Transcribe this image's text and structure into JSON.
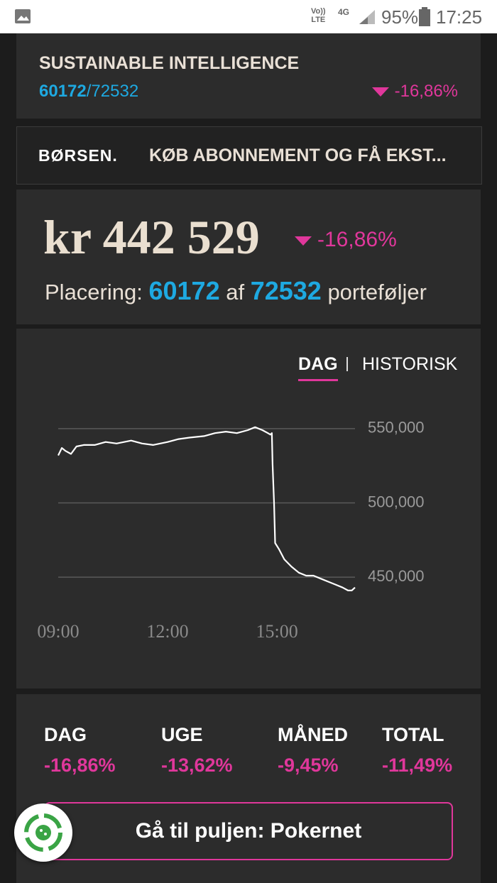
{
  "status_bar": {
    "volte_top": "Vo))",
    "volte_bottom": "LTE",
    "network": "4G",
    "battery": "95%",
    "time": "17:25"
  },
  "portfolio": {
    "name": "SUSTAINABLE INTELLIGENCE",
    "rank": "60172",
    "separator": "/",
    "total": "72532",
    "change": "-16,86%",
    "amount": "kr 442 529",
    "placement_label": "Placering:",
    "of": "af",
    "suffix": "porteføljer"
  },
  "ad": {
    "brand": "BØRSEN.",
    "text": "KØB ABONNEMENT OG FÅ EKST..."
  },
  "tabs": {
    "active": "DAG",
    "other": "HISTORISK"
  },
  "chart_data": {
    "type": "line",
    "color": "#ffffff",
    "grid": true,
    "x": [
      9.0,
      9.1,
      9.2,
      9.35,
      9.5,
      9.7,
      10.0,
      10.3,
      10.6,
      11.0,
      11.3,
      11.6,
      12.0,
      12.3,
      12.6,
      13.0,
      13.3,
      13.6,
      13.9,
      14.2,
      14.4,
      14.6,
      14.75,
      14.82,
      14.86,
      14.88,
      14.92,
      14.95,
      15.05,
      15.2,
      15.4,
      15.6,
      15.8,
      16.0,
      16.2,
      16.4,
      16.6,
      16.8,
      16.95,
      17.05,
      17.14
    ],
    "values": [
      532000,
      537000,
      535000,
      533000,
      538000,
      539000,
      539000,
      541000,
      540000,
      542000,
      540000,
      539000,
      541000,
      543000,
      544000,
      545000,
      547000,
      548000,
      547000,
      549000,
      551000,
      549000,
      547000,
      546000,
      547000,
      526000,
      500000,
      473000,
      469000,
      462000,
      457000,
      453000,
      451000,
      451000,
      449000,
      447000,
      445000,
      443000,
      441000,
      441000,
      443000
    ],
    "xlim": [
      9,
      17.14
    ],
    "ylim": [
      440000,
      560000
    ],
    "xticks": [
      {
        "value": 9,
        "label": "09:00"
      },
      {
        "value": 12,
        "label": "12:00"
      },
      {
        "value": 15,
        "label": "15:00"
      }
    ],
    "yticks": [
      {
        "value": 450000,
        "label": "450,000"
      },
      {
        "value": 500000,
        "label": "500,000"
      },
      {
        "value": 550000,
        "label": "550,000"
      }
    ]
  },
  "stats": [
    {
      "label": "DAG",
      "value": "-16,86%"
    },
    {
      "label": "UGE",
      "value": "-13,62%"
    },
    {
      "label": "MÅNED",
      "value": "-9,45%"
    },
    {
      "label": "TOTAL",
      "value": "-11,49%"
    }
  ],
  "button": "Gå til puljen: Pokernet"
}
